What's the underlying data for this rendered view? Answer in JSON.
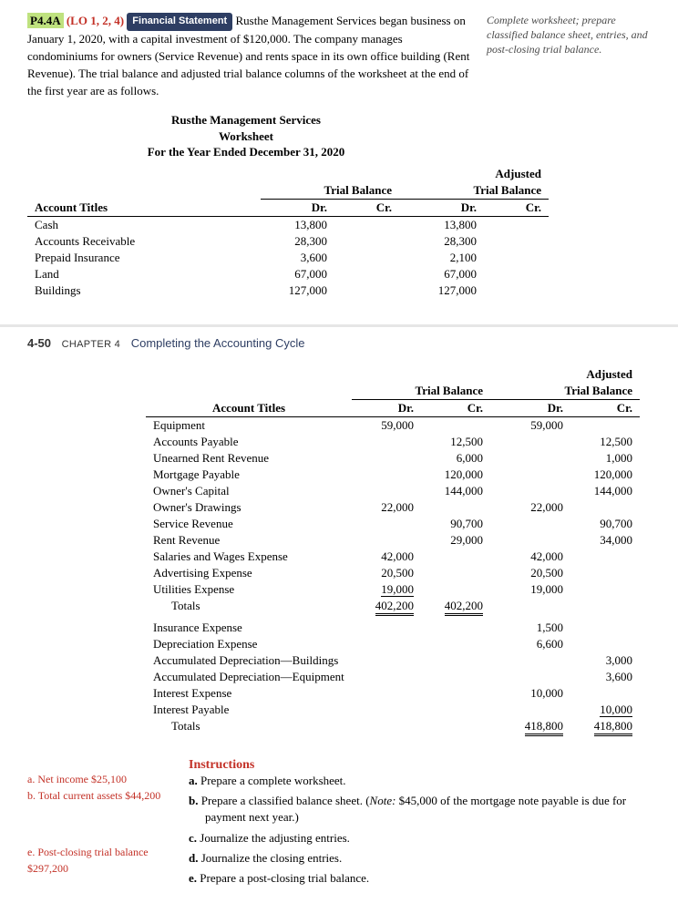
{
  "header": {
    "problem_id": "P4.4A",
    "lo": "(LO 1, 2, 4)",
    "badge": "Financial Statement",
    "intro": "Rusthe Management Services began business on January 1, 2020, with a capital investment of $120,000. The company manages condominiums for owners (Service Revenue) and rents space in its own office building (Rent Revenue). The trial balance and adjusted trial balance columns of the worksheet at the end of the first year are as follows.",
    "side_note": "Complete worksheet; prepare classified balance sheet, entries, and post-closing trial balance."
  },
  "ws_header": {
    "l1": "Rusthe Management Services",
    "l2": "Worksheet",
    "l3": "For the Year Ended December 31, 2020"
  },
  "col_labels": {
    "account_titles": "Account Titles",
    "trial_balance": "Trial Balance",
    "adj_trial_balance": "Adjusted Trial Balance",
    "adjusted": "Adjusted",
    "dr": "Dr.",
    "cr": "Cr.",
    "totals": "Totals"
  },
  "table1": {
    "rows": [
      {
        "name": "Cash",
        "tb_dr": "13,800",
        "atb_dr": "13,800"
      },
      {
        "name": "Accounts Receivable",
        "tb_dr": "28,300",
        "atb_dr": "28,300"
      },
      {
        "name": "Prepaid Insurance",
        "tb_dr": "3,600",
        "atb_dr": "2,100"
      },
      {
        "name": "Land",
        "tb_dr": "67,000",
        "atb_dr": "67,000"
      },
      {
        "name": "Buildings",
        "tb_dr": "127,000",
        "atb_dr": "127,000"
      }
    ]
  },
  "chapter_line": {
    "num": "4-50",
    "label": "CHAPTER 4",
    "title": "Completing the Accounting Cycle"
  },
  "table2": {
    "rows": [
      {
        "name": "Equipment",
        "tb_dr": "59,000",
        "tb_cr": "",
        "atb_dr": "59,000",
        "atb_cr": ""
      },
      {
        "name": "Accounts Payable",
        "tb_dr": "",
        "tb_cr": "12,500",
        "atb_dr": "",
        "atb_cr": "12,500"
      },
      {
        "name": "Unearned Rent Revenue",
        "tb_dr": "",
        "tb_cr": "6,000",
        "atb_dr": "",
        "atb_cr": "1,000"
      },
      {
        "name": "Mortgage Payable",
        "tb_dr": "",
        "tb_cr": "120,000",
        "atb_dr": "",
        "atb_cr": "120,000"
      },
      {
        "name": "Owner's Capital",
        "tb_dr": "",
        "tb_cr": "144,000",
        "atb_dr": "",
        "atb_cr": "144,000"
      },
      {
        "name": "Owner's Drawings",
        "tb_dr": "22,000",
        "tb_cr": "",
        "atb_dr": "22,000",
        "atb_cr": ""
      },
      {
        "name": "Service Revenue",
        "tb_dr": "",
        "tb_cr": "90,700",
        "atb_dr": "",
        "atb_cr": "90,700"
      },
      {
        "name": "Rent Revenue",
        "tb_dr": "",
        "tb_cr": "29,000",
        "atb_dr": "",
        "atb_cr": "34,000"
      },
      {
        "name": "Salaries and Wages Expense",
        "tb_dr": "42,000",
        "tb_cr": "",
        "atb_dr": "42,000",
        "atb_cr": ""
      },
      {
        "name": "Advertising Expense",
        "tb_dr": "20,500",
        "tb_cr": "",
        "atb_dr": "20,500",
        "atb_cr": ""
      },
      {
        "name": "Utilities Expense",
        "tb_dr": "19,000",
        "tb_cr": "",
        "atb_dr": "19,000",
        "atb_cr": "",
        "u": "single"
      }
    ],
    "totals1": {
      "tb_dr": "402,200",
      "tb_cr": "402,200"
    },
    "rows_b": [
      {
        "name": "Insurance Expense",
        "atb_dr": "1,500",
        "atb_cr": ""
      },
      {
        "name": "Depreciation Expense",
        "atb_dr": "6,600",
        "atb_cr": ""
      },
      {
        "name": "Accumulated Depreciation—Buildings",
        "atb_dr": "",
        "atb_cr": "3,000"
      },
      {
        "name": "Accumulated Depreciation—Equipment",
        "atb_dr": "",
        "atb_cr": "3,600"
      },
      {
        "name": "Interest Expense",
        "atb_dr": "10,000",
        "atb_cr": ""
      },
      {
        "name": "Interest Payable",
        "atb_dr": "",
        "atb_cr": "10,000",
        "u": "single"
      }
    ],
    "totals2": {
      "atb_dr": "418,800",
      "atb_cr": "418,800"
    }
  },
  "instructions": {
    "heading": "Instructions",
    "answers": {
      "a": "a. Net income $25,100",
      "b": "b. Total current assets $44,200",
      "e": "e. Post-closing trial balance $297,200"
    },
    "items": {
      "a": "Prepare a complete worksheet.",
      "b_pre": "Prepare a classified balance sheet. (",
      "b_note_label": "Note:",
      "b_post": " $45,000 of the mortgage note payable is due for payment next year.)",
      "c": "Journalize the adjusting entries.",
      "d": "Journalize the closing entries.",
      "e": "Prepare a post-closing trial balance."
    }
  }
}
